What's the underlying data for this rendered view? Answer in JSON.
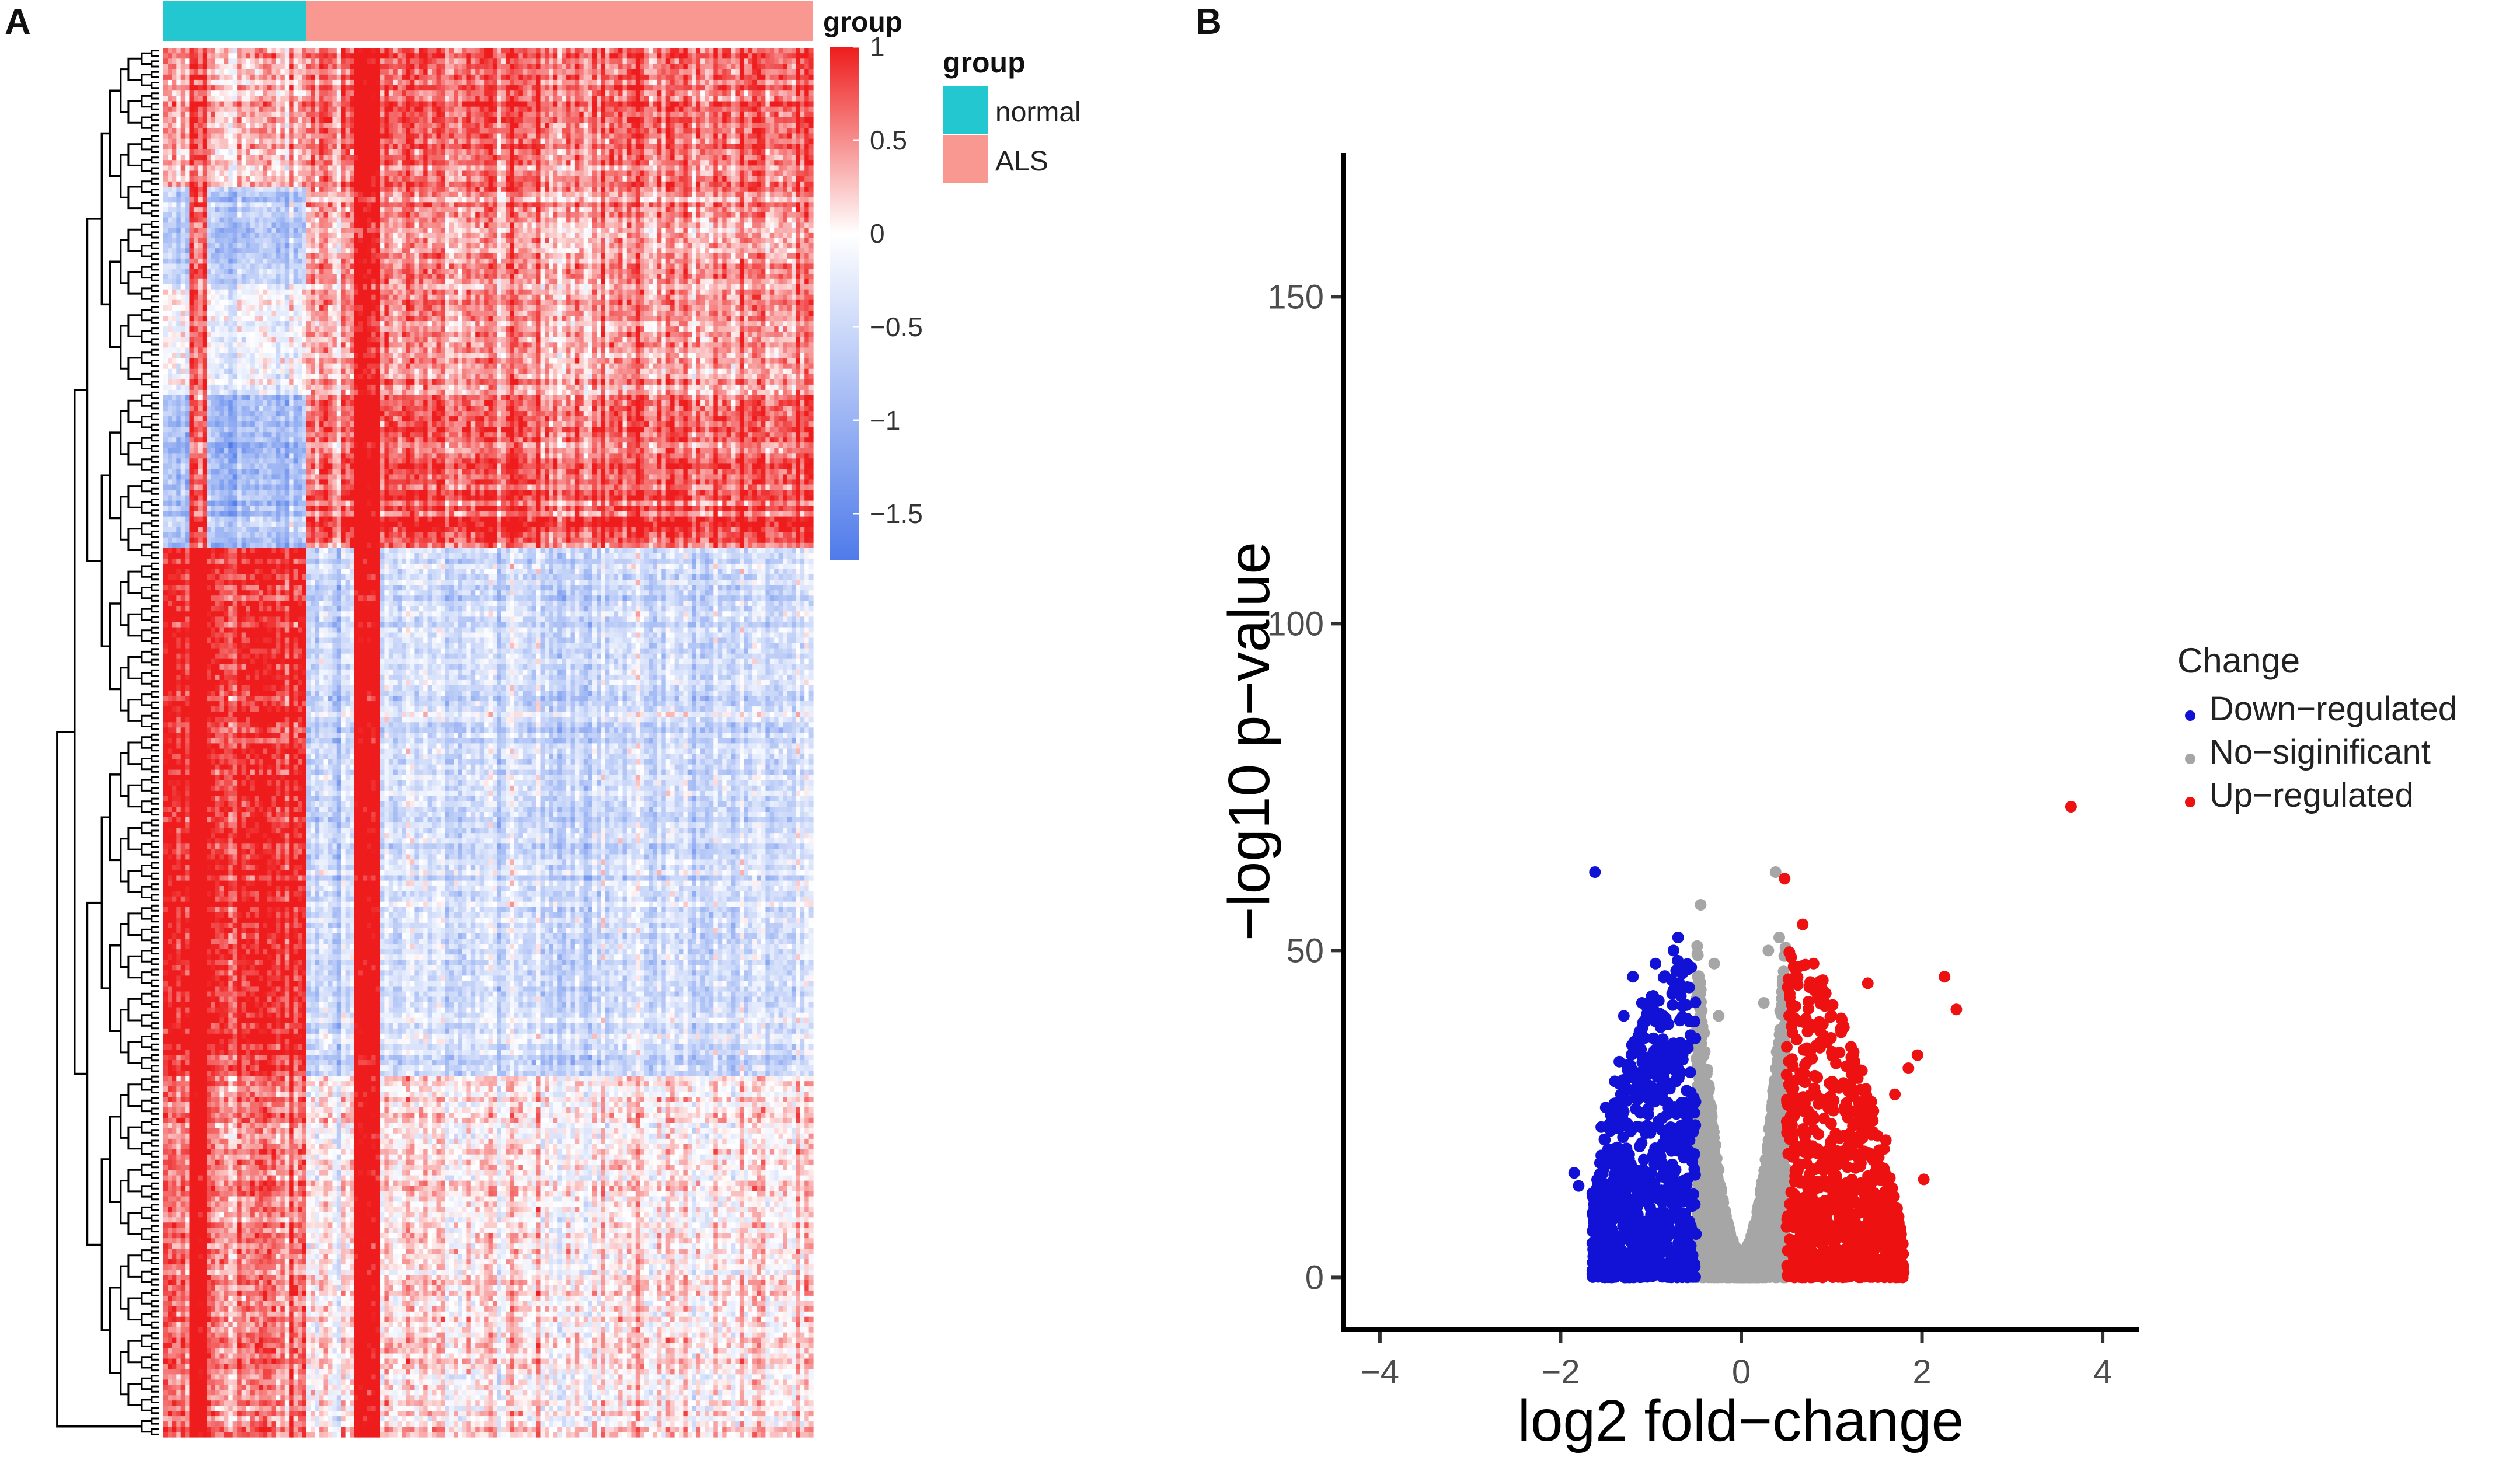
{
  "panels": {
    "a": "A",
    "b": "B"
  },
  "chart_data": [
    {
      "type": "heatmap",
      "annotation_title": "group",
      "groups": [
        {
          "name": "normal",
          "color": "#22c7cf",
          "fraction": 0.22
        },
        {
          "name": "ALS",
          "color": "#f99890",
          "fraction": 0.78
        }
      ],
      "colorbar": {
        "title": "group",
        "ticks": [
          "1",
          "0.5",
          "0",
          "−0.5",
          "−1",
          "−1.5"
        ],
        "tick_values": [
          1,
          0.5,
          0,
          -0.5,
          -1,
          -1.5
        ],
        "range": [
          -1.75,
          1.0
        ],
        "colors": {
          "high": "#ee1c1c",
          "mid": "#ffffff",
          "low": "#4f7bea"
        }
      },
      "legend": {
        "title": "group",
        "entries": [
          {
            "label": "normal",
            "color": "#22c7cf"
          },
          {
            "label": "ALS",
            "color": "#f99890"
          }
        ]
      },
      "row_blocks": [
        {
          "rows": 0.1,
          "normal": 0.25,
          "als": 0.62
        },
        {
          "rows": 0.07,
          "normal": -0.7,
          "als": 0.45
        },
        {
          "rows": 0.08,
          "normal": -0.2,
          "als": 0.4
        },
        {
          "rows": 0.11,
          "normal": -0.9,
          "als": 0.7
        },
        {
          "rows": 0.38,
          "normal": 0.92,
          "als": -0.45
        },
        {
          "rows": 0.26,
          "normal": 0.55,
          "als": 0.1
        }
      ]
    },
    {
      "type": "scatter",
      "title": "",
      "xlabel": "log2 fold−change",
      "ylabel": "−log10 p−value",
      "xlim": [
        -4.4,
        4.4
      ],
      "ylim": [
        -8,
        172
      ],
      "xticks": [
        -4,
        -2,
        0,
        2,
        4
      ],
      "xtick_labels": [
        "−4",
        "−2",
        "0",
        "2",
        "4"
      ],
      "yticks": [
        0,
        50,
        100,
        150
      ],
      "ytick_labels": [
        "0",
        "50",
        "100",
        "150"
      ],
      "legend": {
        "title": "Change",
        "entries": [
          {
            "label": "Down−regulated",
            "color": "#1212d6"
          },
          {
            "label": "No−siginificant",
            "color": "#a6a6a6"
          },
          {
            "label": "Up−regulated",
            "color": "#ee1111"
          }
        ]
      },
      "thresholds": {
        "log2fc": 0.5
      },
      "series": [
        {
          "name": "Down−regulated",
          "color": "#1212d6",
          "points": [
            [
              -1.62,
              62
            ],
            [
              -1.8,
              14
            ],
            [
              -1.85,
              16
            ],
            [
              -1.5,
              26
            ],
            [
              -1.4,
              30
            ],
            [
              -1.35,
              33
            ],
            [
              -1.3,
              40
            ],
            [
              -1.2,
              46
            ],
            [
              -1.1,
              42
            ],
            [
              -0.95,
              48
            ],
            [
              -0.75,
              50
            ],
            [
              -0.7,
              52
            ],
            [
              -1.55,
              23
            ],
            [
              -1.45,
              18
            ]
          ]
        },
        {
          "name": "No−siginificant",
          "color": "#a6a6a6",
          "points": [
            [
              -0.45,
              57
            ],
            [
              0.38,
              62
            ],
            [
              0.42,
              52
            ],
            [
              -0.3,
              48
            ],
            [
              0.3,
              50
            ],
            [
              -0.25,
              40
            ],
            [
              0.25,
              42
            ]
          ]
        },
        {
          "name": "Up−regulated",
          "color": "#ee1111",
          "points": [
            [
              3.65,
              72
            ],
            [
              0.48,
              61
            ],
            [
              0.68,
              54
            ],
            [
              2.25,
              46
            ],
            [
              2.38,
              41
            ],
            [
              1.4,
              45
            ],
            [
              1.85,
              32
            ],
            [
              1.95,
              34
            ],
            [
              2.02,
              15
            ],
            [
              1.7,
              28
            ],
            [
              1.6,
              21
            ],
            [
              1.5,
              16
            ],
            [
              1.3,
              24
            ],
            [
              1.2,
              29
            ],
            [
              1.1,
              38
            ],
            [
              0.9,
              44
            ],
            [
              0.8,
              48
            ]
          ]
        }
      ],
      "cloud": {
        "down": {
          "x_from": -1.65,
          "x_to": -0.5,
          "max_y": 50
        },
        "ns": {
          "x_from": -0.5,
          "x_to": 0.5,
          "max_y": 58
        },
        "up": {
          "x_from": 0.5,
          "x_to": 1.8,
          "max_y": 50
        }
      }
    }
  ]
}
